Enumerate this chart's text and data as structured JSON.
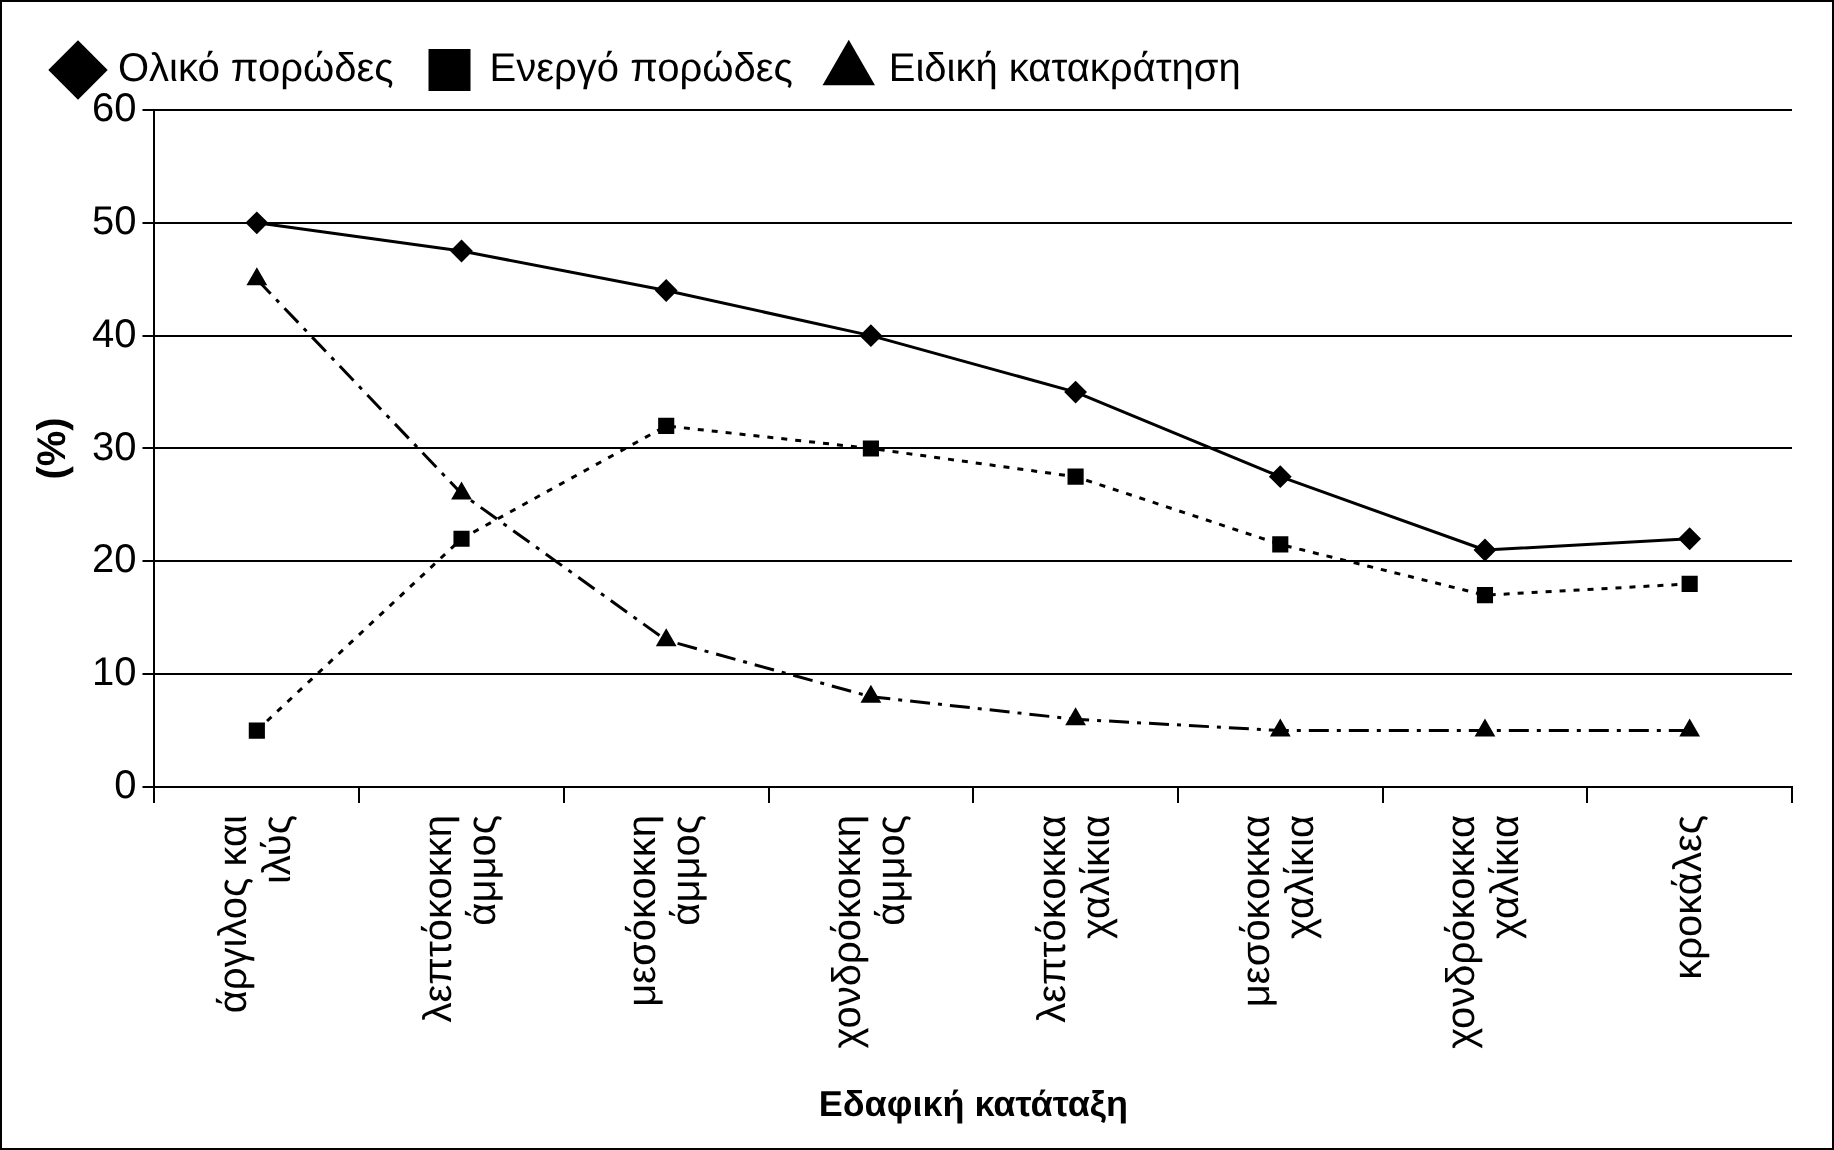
{
  "chart_data": {
    "type": "line",
    "xlabel": "Εδαφική κατάταξη",
    "ylabel": "(%)",
    "categories": [
      "άργιλος και ιλύς",
      "λεπτόκοκκη άμμος",
      "μεσόκοκκη άμμος",
      "χονδρόκοκκη άμμος",
      "λεπτόκοκκα χαλίκια",
      "μεσόκοκκα χαλίκια",
      "χονδρόκοκκα χαλίκια",
      "κροκάλες"
    ],
    "series": [
      {
        "name": "Ολικό πορώδες",
        "color": "#000000",
        "marker": "diamond",
        "line_style": "solid",
        "values": [
          50,
          47.5,
          44,
          40,
          35,
          27.5,
          21,
          22
        ]
      },
      {
        "name": "Ενεργό πορώδες",
        "color": "#000000",
        "marker": "square",
        "line_style": "dotted",
        "values": [
          5,
          22,
          32,
          30,
          27.5,
          21.5,
          17,
          18
        ]
      },
      {
        "name": "Ειδική κατακράτηση",
        "color": "#000000",
        "marker": "triangle",
        "line_style": "dashed",
        "values": [
          45,
          26,
          13,
          8,
          6,
          5,
          5,
          5
        ]
      }
    ],
    "ylim": [
      0,
      60
    ],
    "yticks": [
      0,
      10,
      20,
      30,
      40,
      50,
      60
    ],
    "grid": "y",
    "legend": "top"
  }
}
